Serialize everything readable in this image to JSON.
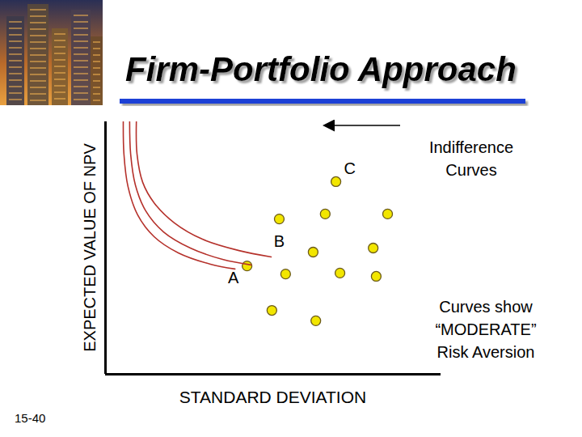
{
  "chart_data": {
    "type": "scatter",
    "title": "Firm-Portfolio Approach",
    "x_label": "STANDARD DEVIATION",
    "y_label": "EXPECTED VALUE OF NPV",
    "xlim": [
      0,
      10
    ],
    "ylim": [
      0,
      10
    ],
    "tick_labels": false,
    "grid": false,
    "series": [
      {
        "type": "scatter",
        "color": "#f2e600",
        "marker": "circle",
        "x": [
          6.87,
          5.18,
          6.55,
          8.41,
          6.19,
          7.98,
          4.22,
          5.37,
          6.99,
          8.07,
          4.96,
          6.27
        ],
        "values": [
          7.63,
          6.15,
          6.35,
          6.35,
          4.84,
          5.0,
          4.29,
          3.97,
          4.01,
          3.88,
          2.53,
          2.12
        ],
        "point_labels": [
          "C",
          "B",
          null,
          null,
          null,
          null,
          "A",
          null,
          null,
          null,
          null,
          null
        ]
      },
      {
        "type": "line",
        "color": "#b5312b",
        "x": [
          0.53,
          0.55,
          0.67,
          0.96,
          1.45,
          2.17,
          3.13,
          3.86
        ],
        "values": [
          10,
          8.72,
          7.44,
          6.31,
          5.45,
          4.81,
          4.36,
          4.17
        ]
      },
      {
        "type": "line",
        "color": "#b5312b",
        "x": [
          0.72,
          0.75,
          0.89,
          1.2,
          1.73,
          2.53,
          3.49,
          4.34
        ],
        "values": [
          10,
          8.72,
          7.5,
          6.47,
          5.64,
          5.0,
          4.55,
          4.33
        ]
      },
      {
        "type": "line",
        "color": "#b5312b",
        "x": [
          0.92,
          0.94,
          1.11,
          1.45,
          2.05,
          2.89,
          3.98,
          4.94
        ],
        "values": [
          10,
          8.72,
          7.6,
          6.79,
          6.0,
          5.35,
          4.9,
          4.65
        ]
      }
    ],
    "annotations": [
      [
        "Indifference",
        "Curves"
      ],
      [
        "Curves show",
        "“MODERATE”",
        "Risk Aversion"
      ]
    ],
    "slide_number": "15-40"
  }
}
